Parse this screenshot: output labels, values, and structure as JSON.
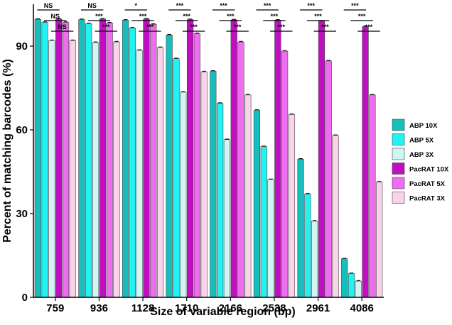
{
  "chart_data": {
    "type": "bar",
    "title": "",
    "xlabel": "Size of variable region (bp)",
    "ylabel": "Percent of matching barcodes (%)",
    "ylim": [
      0,
      105
    ],
    "yticks": [
      0,
      30,
      60,
      90
    ],
    "categories": [
      "759",
      "936",
      "1128",
      "1710",
      "2166",
      "2538",
      "2961",
      "4086"
    ],
    "series": [
      {
        "name": "ABP 10X",
        "color": "#17bebb",
        "values": [
          99.6,
          99.5,
          99.3,
          94.0,
          81.0,
          67.0,
          49.5,
          13.8
        ]
      },
      {
        "name": "ABP 5X",
        "color": "#22f2f2",
        "values": [
          98.5,
          98.0,
          96.5,
          85.5,
          69.5,
          54.0,
          37.0,
          8.5
        ]
      },
      {
        "name": "ABP 3X",
        "color": "#cff5f5",
        "values": [
          92.0,
          91.3,
          88.5,
          73.5,
          56.5,
          42.2,
          27.3,
          5.8
        ]
      },
      {
        "name": "PacRAT 10X",
        "color": "#c00fc0",
        "values": [
          99.7,
          99.7,
          99.7,
          99.5,
          99.4,
          99.3,
          99.0,
          97.0
        ]
      },
      {
        "name": "PacRAT 5X",
        "color": "#ef6def",
        "values": [
          98.5,
          98.3,
          97.8,
          94.5,
          91.5,
          88.2,
          84.7,
          72.5
        ]
      },
      {
        "name": "PacRAT 3X",
        "color": "#f9d3e9",
        "values": [
          92.0,
          91.5,
          89.5,
          80.8,
          72.5,
          65.5,
          58.0,
          41.3
        ]
      }
    ],
    "significance": [
      [
        "NS",
        "NS",
        "NS"
      ],
      [
        "NS",
        "***",
        "***"
      ],
      [
        "*",
        "***",
        "***"
      ],
      [
        "***",
        "***",
        "***"
      ],
      [
        "***",
        "***",
        "***"
      ],
      [
        "***",
        "***",
        "***"
      ],
      [
        "***",
        "***",
        "***"
      ],
      [
        "***",
        "***",
        "***"
      ]
    ],
    "legend_position": "right",
    "grid": false
  }
}
